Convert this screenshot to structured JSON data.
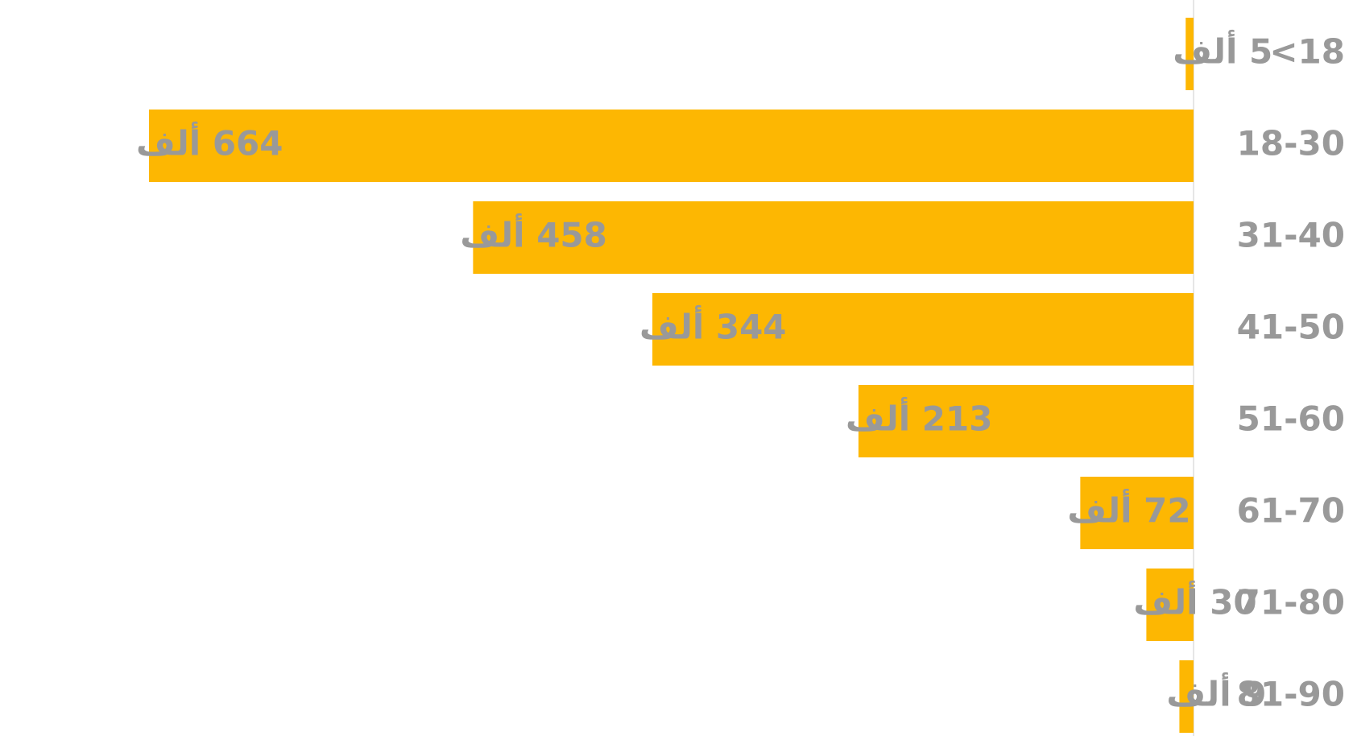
{
  "chart_data": {
    "type": "bar",
    "orientation": "horizontal",
    "direction": "rtl",
    "categories": [
      "<18",
      "18-30",
      "31-40",
      "41-50",
      "51-60",
      "61-70",
      "71-80",
      "81-90"
    ],
    "values": [
      5,
      664,
      458,
      344,
      213,
      72,
      30,
      9
    ],
    "value_labels": [
      "5 ألف",
      "664 ألف",
      "458 ألف",
      "344 ألف",
      "213 ألف",
      "72 ألف",
      "30 ألف",
      "9 ألف"
    ],
    "color": "#fdb702"
  }
}
